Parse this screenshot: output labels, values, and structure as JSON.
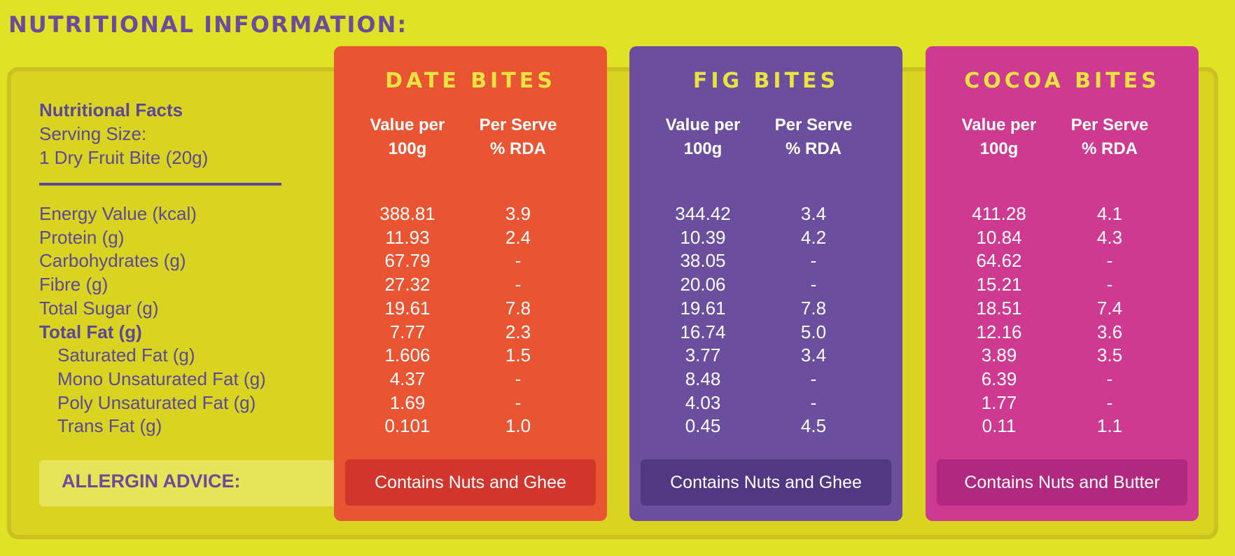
{
  "heading": "NUTRITIONAL INFORMATION:",
  "facts": {
    "title": "Nutritional Facts",
    "serving_label": "Serving Size:",
    "serving_value": "1 Dry Fruit Bite (20g)"
  },
  "rows": [
    {
      "label": "Energy Value (kcal)",
      "style": "normal"
    },
    {
      "label": "Protein (g)",
      "style": "normal"
    },
    {
      "label": "Carbohydrates (g)",
      "style": "normal"
    },
    {
      "label": "Fibre (g)",
      "style": "normal"
    },
    {
      "label": "Total Sugar (g)",
      "style": "normal"
    },
    {
      "label": "Total Fat (g)",
      "style": "bold"
    },
    {
      "label": "Saturated Fat (g)",
      "style": "indent"
    },
    {
      "label": "Mono Unsaturated Fat (g)",
      "style": "indent"
    },
    {
      "label": "Poly Unsaturated Fat (g)",
      "style": "indent"
    },
    {
      "label": "Trans Fat (g)",
      "style": "indent"
    }
  ],
  "allergy_label": "ALLERGIN ADVICE:",
  "column_headers": {
    "value_line1": "Value per",
    "value_line2": "100g",
    "rda_line1": "Per Serve",
    "rda_line2": "% RDA"
  },
  "products": [
    {
      "name": "DATE BITES",
      "color": "#e95532",
      "pill_color": "#d1352c",
      "values": [
        "388.81",
        "11.93",
        "67.79",
        "27.32",
        "19.61",
        "7.77",
        "1.606",
        "4.37",
        "1.69",
        "0.101"
      ],
      "rda": [
        "3.9",
        "2.4",
        "-",
        "-",
        "7.8",
        "2.3",
        "1.5",
        "-",
        "-",
        "1.0"
      ],
      "allergy": "Contains Nuts and Ghee"
    },
    {
      "name": "FIG BITES",
      "color": "#6b4e9e",
      "pill_color": "#523883",
      "values": [
        "344.42",
        "10.39",
        "38.05",
        "20.06",
        "19.61",
        "16.74",
        "3.77",
        "8.48",
        "4.03",
        "0.45"
      ],
      "rda": [
        "3.4",
        "4.2",
        "-",
        "-",
        "7.8",
        "5.0",
        "3.4",
        "-",
        "-",
        "4.5"
      ],
      "allergy": "Contains Nuts and Ghee"
    },
    {
      "name": "COCOA BITES",
      "color": "#cf3a91",
      "pill_color": "#b02880",
      "values": [
        "411.28",
        "10.84",
        "64.62",
        "15.21",
        "18.51",
        "12.16",
        "3.89",
        "6.39",
        "1.77",
        "0.11"
      ],
      "rda": [
        "4.1",
        "4.3",
        "-",
        "-",
        "7.4",
        "3.6",
        "3.5",
        "-",
        "-",
        "1.1"
      ],
      "allergy": "Contains Nuts and Butter"
    }
  ]
}
